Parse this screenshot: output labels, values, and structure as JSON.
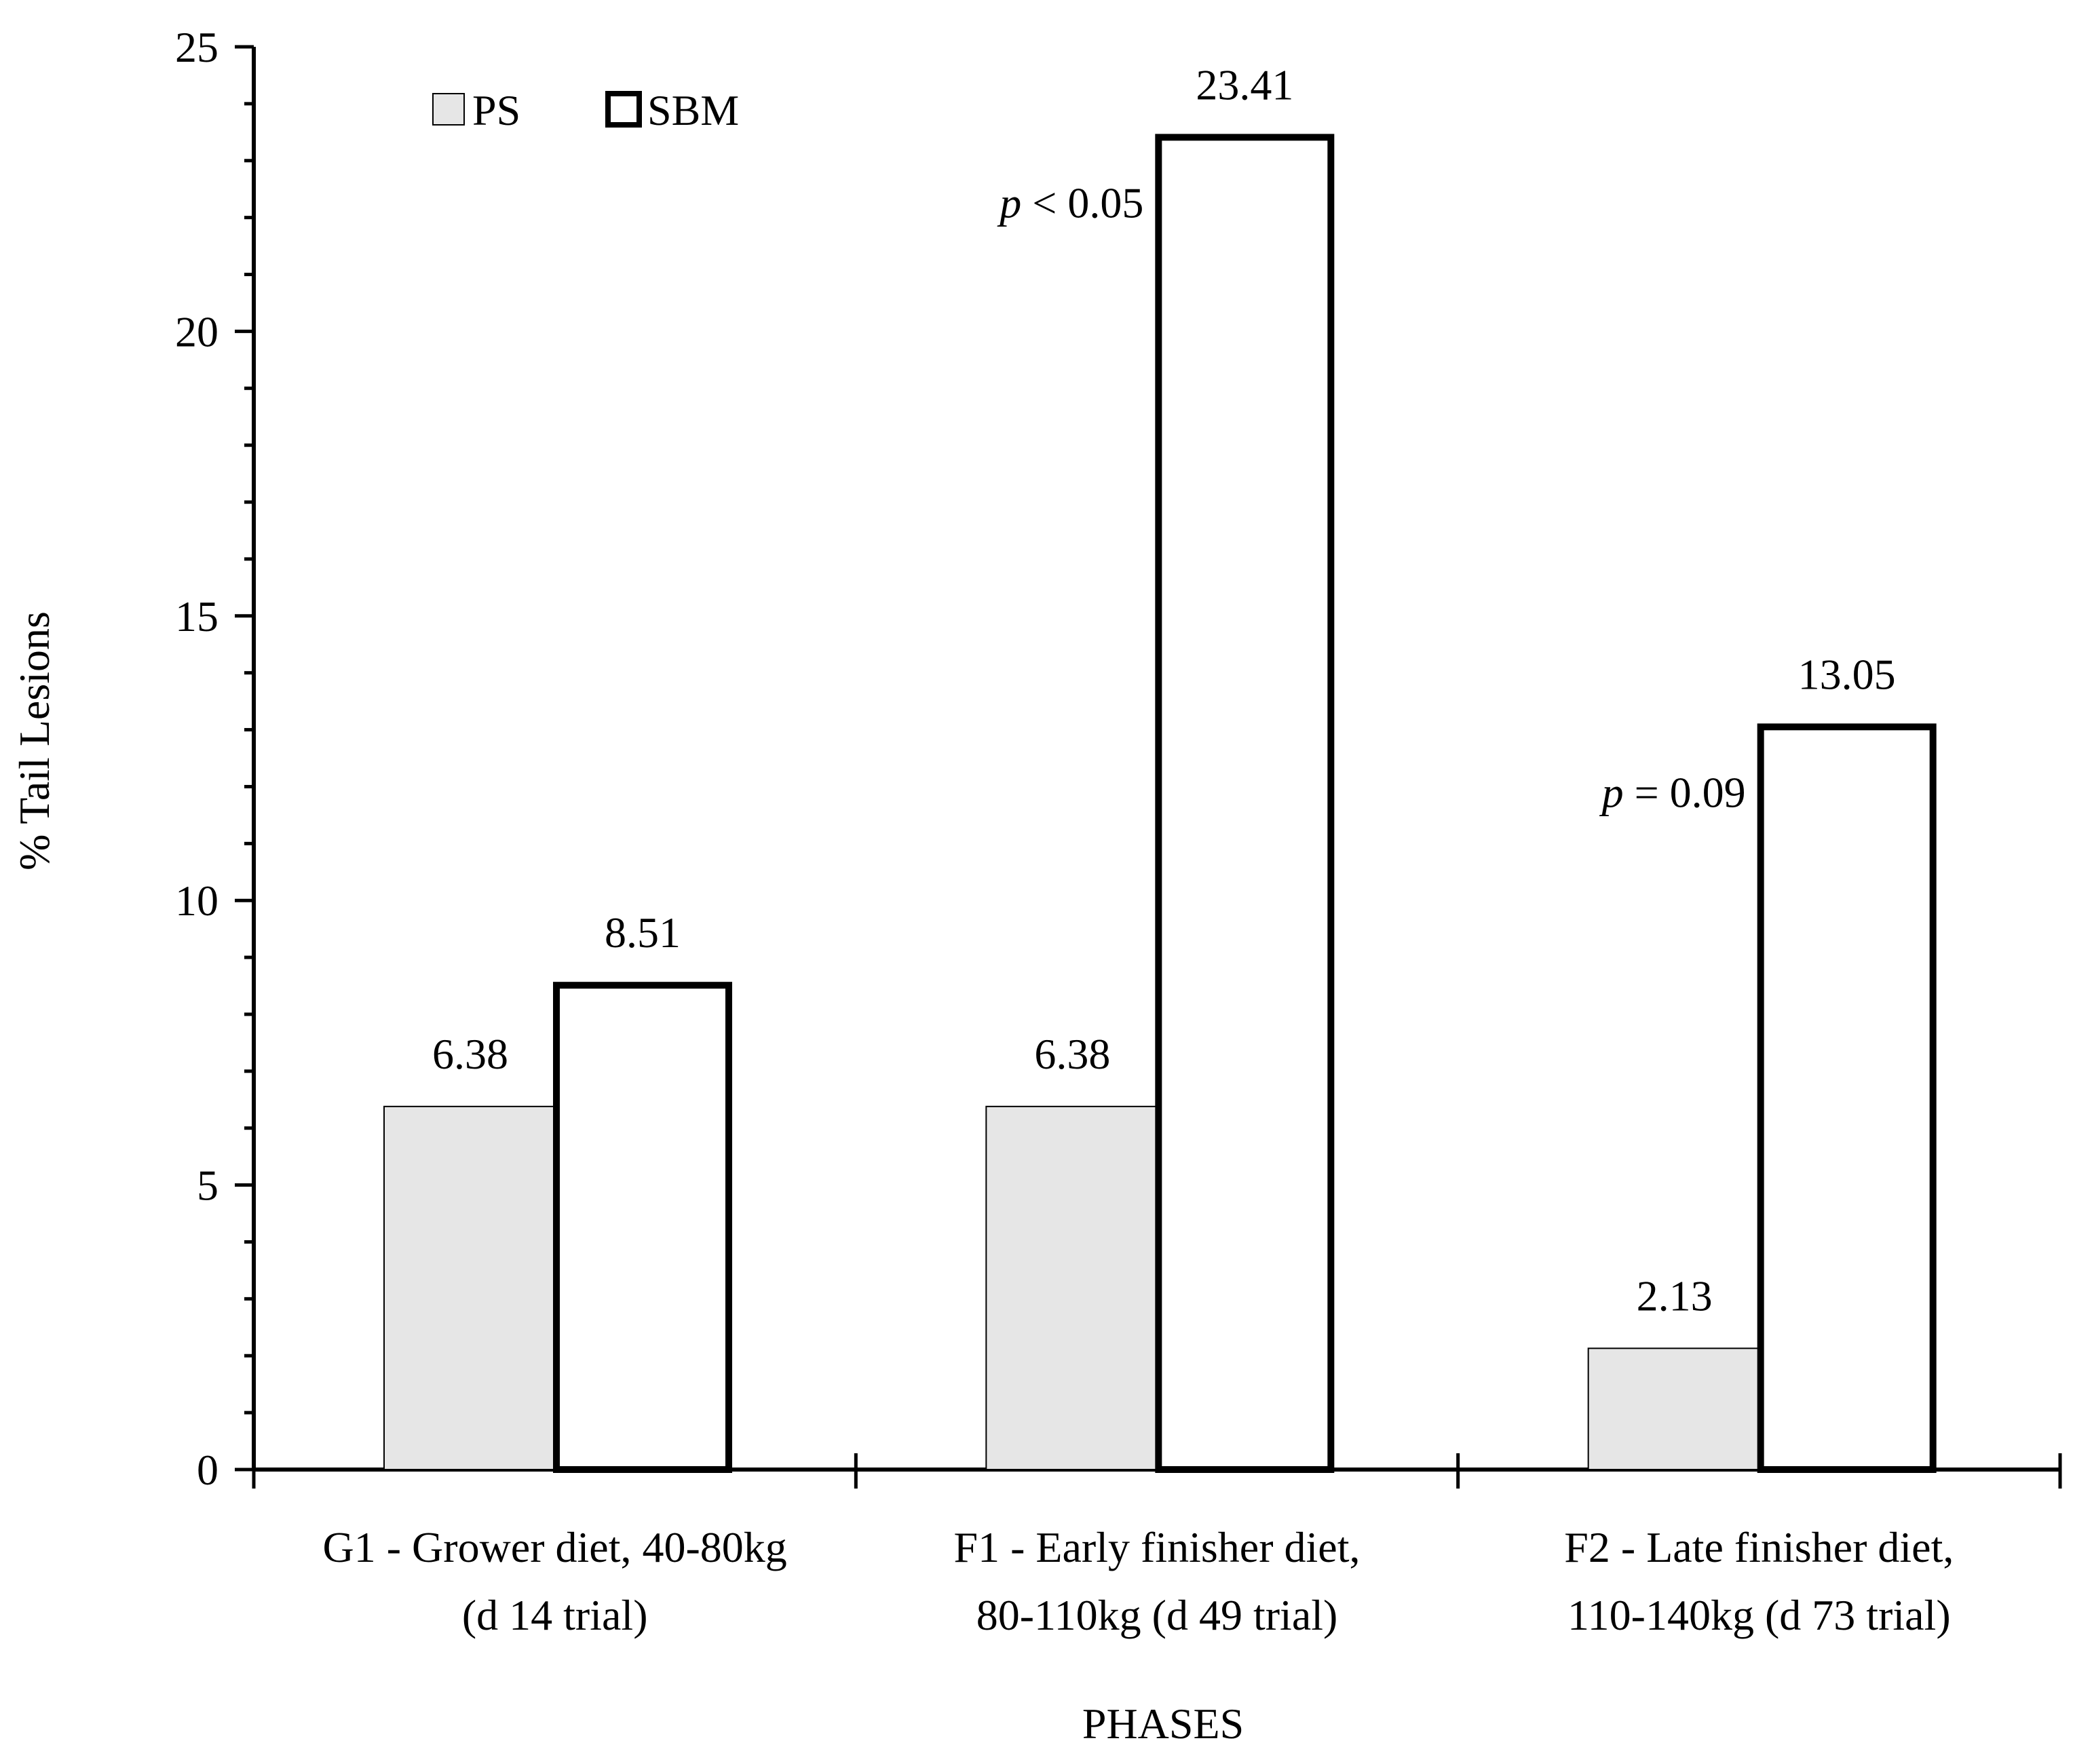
{
  "chart_data": {
    "type": "bar",
    "ylabel": "%  Tail Lesions",
    "xlabel": "PHASES",
    "ylim": [
      0,
      25
    ],
    "y_ticks": [
      "0",
      "5",
      "10",
      "15",
      "20",
      "25"
    ],
    "categories": [
      [
        "G1 - Grower diet, 40-80kg",
        "(d 14 trial)"
      ],
      [
        "F1 - Early finisher diet,",
        "80-110kg (d 49 trial)"
      ],
      [
        "F2 - Late finisher diet,",
        "110-140kg (d 73 trial)"
      ]
    ],
    "series": [
      {
        "name": "PS",
        "values": [
          6.38,
          6.38,
          2.13
        ],
        "labels": [
          "6.38",
          "6.38",
          "2.13"
        ],
        "fill": "#e6e6e6",
        "stroke": "#000000"
      },
      {
        "name": "SBM",
        "values": [
          8.51,
          23.41,
          13.05
        ],
        "labels": [
          "8.51",
          "23.41",
          "13.05"
        ],
        "fill": "#ffffff",
        "stroke": "#000000"
      }
    ],
    "annotations": [
      {
        "category_index": 1,
        "p_symbol": "p",
        "rest": " < 0.05"
      },
      {
        "category_index": 2,
        "p_symbol": "p",
        "rest": " = 0.09"
      }
    ],
    "legend": {
      "position": "top-left",
      "items": [
        "PS",
        "SBM"
      ]
    },
    "grid": false
  }
}
